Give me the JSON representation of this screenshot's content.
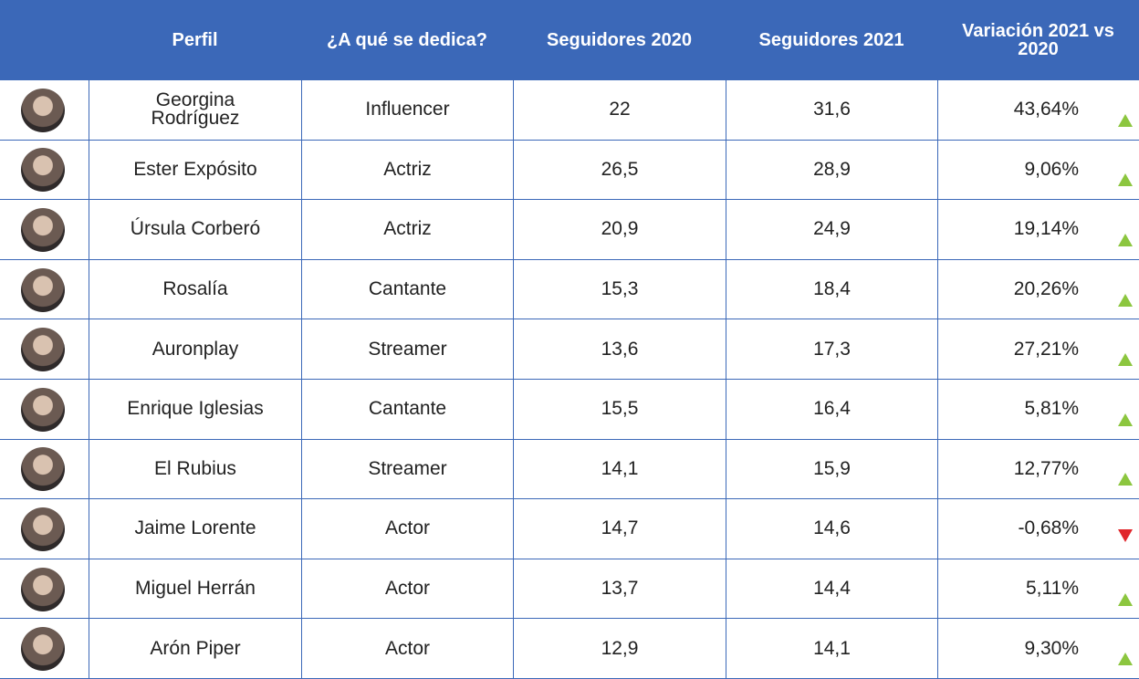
{
  "table": {
    "header": [
      "Perfil",
      "¿A qué se dedica?",
      "Seguidores 2020",
      "Seguidores 2021",
      "Variación 2021 vs 2020"
    ],
    "rows": [
      {
        "perfil": "Georgina Rodríguez",
        "dedica": "Influencer",
        "s2020": "22",
        "s2021": "31,6",
        "variacion": "43,64%",
        "trend": "up"
      },
      {
        "perfil": "Ester Expósito",
        "dedica": "Actriz",
        "s2020": "26,5",
        "s2021": "28,9",
        "variacion": "9,06%",
        "trend": "up"
      },
      {
        "perfil": "Úrsula Corberó",
        "dedica": "Actriz",
        "s2020": "20,9",
        "s2021": "24,9",
        "variacion": "19,14%",
        "trend": "up"
      },
      {
        "perfil": "Rosalía",
        "dedica": "Cantante",
        "s2020": "15,3",
        "s2021": "18,4",
        "variacion": "20,26%",
        "trend": "up"
      },
      {
        "perfil": "Auronplay",
        "dedica": "Streamer",
        "s2020": "13,6",
        "s2021": "17,3",
        "variacion": "27,21%",
        "trend": "up"
      },
      {
        "perfil": "Enrique Iglesias",
        "dedica": "Cantante",
        "s2020": "15,5",
        "s2021": "16,4",
        "variacion": "5,81%",
        "trend": "up"
      },
      {
        "perfil": "El Rubius",
        "dedica": "Streamer",
        "s2020": "14,1",
        "s2021": "15,9",
        "variacion": "12,77%",
        "trend": "up"
      },
      {
        "perfil": "Jaime Lorente",
        "dedica": "Actor",
        "s2020": "14,7",
        "s2021": "14,6",
        "variacion": "-0,68%",
        "trend": "down"
      },
      {
        "perfil": "Miguel Herrán",
        "dedica": "Actor",
        "s2020": "13,7",
        "s2021": "14,4",
        "variacion": "5,11%",
        "trend": "up"
      },
      {
        "perfil": "Arón Piper",
        "dedica": "Actor",
        "s2020": "12,9",
        "s2021": "14,1",
        "variacion": "9,30%",
        "trend": "up"
      }
    ]
  }
}
